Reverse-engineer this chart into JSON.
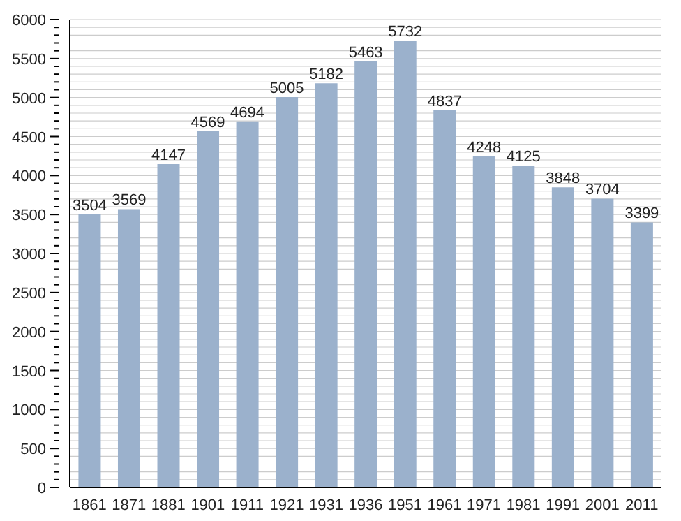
{
  "chart_data": {
    "type": "bar",
    "categories": [
      "1861",
      "1871",
      "1881",
      "1901",
      "1911",
      "1921",
      "1931",
      "1936",
      "1951",
      "1961",
      "1971",
      "1981",
      "1991",
      "2001",
      "2011"
    ],
    "values": [
      3504,
      3569,
      4147,
      4569,
      4694,
      5005,
      5182,
      5463,
      5732,
      4837,
      4248,
      4125,
      3848,
      3704,
      3399
    ],
    "color": "#9bb1cc",
    "ylim": [
      0,
      6000
    ],
    "yticks": [
      0,
      {
        "value": 100,
        "label": null
      },
      {
        "value": 200,
        "label": null
      },
      {
        "value": 300,
        "label": null
      },
      {
        "value": 400,
        "label": null
      },
      500,
      {
        "value": 600,
        "label": null
      },
      {
        "value": 700,
        "label": null
      },
      {
        "value": 800,
        "label": null
      },
      {
        "value": 900,
        "label": null
      },
      1000,
      {
        "value": 1100,
        "label": null
      },
      {
        "value": 1200,
        "label": null
      },
      {
        "value": 1300,
        "label": null
      },
      {
        "value": 1400,
        "label": null
      },
      1500,
      {
        "value": 1600,
        "label": null
      },
      {
        "value": 1700,
        "label": null
      },
      {
        "value": 1800,
        "label": null
      },
      {
        "value": 1900,
        "label": null
      },
      2000,
      {
        "value": 2100,
        "label": null
      },
      {
        "value": 2200,
        "label": null
      },
      {
        "value": 2300,
        "label": null
      },
      {
        "value": 2400,
        "label": null
      },
      2500,
      {
        "value": 2600,
        "label": null
      },
      {
        "value": 2700,
        "label": null
      },
      {
        "value": 2800,
        "label": null
      },
      {
        "value": 2900,
        "label": null
      },
      3000,
      {
        "value": 3100,
        "label": null
      },
      {
        "value": 3200,
        "label": null
      },
      {
        "value": 3300,
        "label": null
      },
      {
        "value": 3400,
        "label": null
      },
      3500,
      {
        "value": 3600,
        "label": null
      },
      {
        "value": 3700,
        "label": null
      },
      {
        "value": 3800,
        "label": null
      },
      {
        "value": 3900,
        "label": null
      },
      4000,
      {
        "value": 4100,
        "label": null
      },
      {
        "value": 4200,
        "label": null
      },
      {
        "value": 4300,
        "label": null
      },
      {
        "value": 4400,
        "label": null
      },
      4500,
      {
        "value": 4600,
        "label": null
      },
      {
        "value": 4700,
        "label": null
      },
      {
        "value": 4800,
        "label": null
      },
      {
        "value": 4900,
        "label": null
      },
      5000,
      {
        "value": 5100,
        "label": null
      },
      {
        "value": 5200,
        "label": null
      },
      {
        "value": 5300,
        "label": null
      },
      {
        "value": 5400,
        "label": null
      },
      5500,
      {
        "value": 5600,
        "label": null
      },
      {
        "value": 5700,
        "label": null
      },
      {
        "value": 5800,
        "label": null
      },
      {
        "value": 5900,
        "label": null
      },
      6000
    ],
    "grid": "y",
    "data_labels": true
  }
}
